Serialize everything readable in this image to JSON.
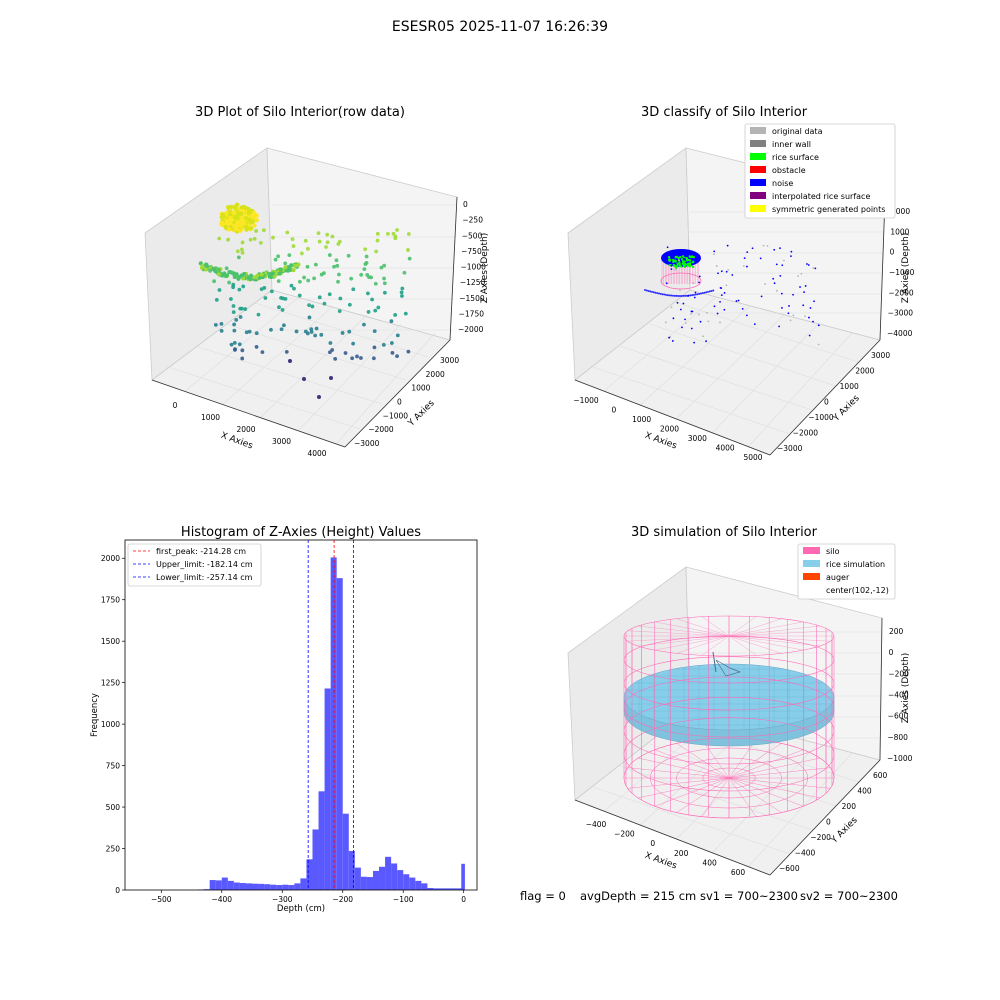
{
  "suptitle": "ESESR05 2025-11-07 16:26:39",
  "colors": {
    "silo": "#ff69b4",
    "rice": "#87ceeb",
    "auger": "#ff4500",
    "hist": "#5050ff",
    "peak_line": "#ff0000",
    "limit_line": "#0000ff"
  },
  "chart_data": [
    {
      "type": "scatter",
      "projection": "3d",
      "title": "3D Plot of Silo Interior(row data)",
      "xlabel": "X Axies",
      "ylabel": "Y Axies",
      "zlabel": "Z Axies (Depth)",
      "xticks": [
        "0",
        "1000",
        "2000",
        "3000",
        "4000"
      ],
      "yticks": [
        "3000",
        "2000",
        "1000",
        "0",
        "−1000",
        "−2000",
        "−3000"
      ],
      "zticks": [
        "0",
        "−250",
        "−500",
        "−750",
        "−1000",
        "−1250",
        "−1500",
        "−1750",
        "−2000"
      ],
      "xlim": [
        -800,
        4500
      ],
      "ylim": [
        -3400,
        3400
      ],
      "zlim": [
        -2100,
        100
      ],
      "colormap": "viridis"
    },
    {
      "type": "scatter",
      "projection": "3d",
      "title": "3D classify of Silo Interior",
      "xlabel": "X Axies",
      "ylabel": "Y Axies",
      "zlabel": "Z Axies (Depth)",
      "xticks": [
        "−1000",
        "0",
        "1000",
        "2000",
        "3000",
        "4000",
        "5000"
      ],
      "yticks": [
        "3000",
        "2000",
        "1000",
        "0",
        "−1000",
        "−2000",
        "−3000"
      ],
      "zticks": [
        "2000",
        "1000",
        "0",
        "−1000",
        "−2000",
        "−3000",
        "−4000"
      ],
      "xlim": [
        -1500,
        5200
      ],
      "ylim": [
        -3400,
        3400
      ],
      "zlim": [
        -4300,
        2300
      ],
      "legend_position": "top-right",
      "legend": [
        {
          "label": "original data",
          "color": "#b4b4b4"
        },
        {
          "label": "inner wall",
          "color": "#808080"
        },
        {
          "label": "rice surface",
          "color": "#00ff00"
        },
        {
          "label": "obstacle",
          "color": "#ff0000"
        },
        {
          "label": "noise",
          "color": "#0000ff"
        },
        {
          "label": "interpolated rice surface",
          "color": "#800080"
        },
        {
          "label": "symmetric generated points",
          "color": "#ffff00"
        }
      ]
    },
    {
      "type": "bar",
      "title": "Histogram of Z-Axies (Height) Values",
      "xlabel": "Depth (cm)",
      "ylabel": "Frequency",
      "xlim": [
        -560,
        22
      ],
      "ylim": [
        0,
        2110
      ],
      "xticks": [
        -500,
        -400,
        -300,
        -200,
        -100,
        0
      ],
      "yticks": [
        0,
        250,
        500,
        750,
        1000,
        1250,
        1500,
        1750,
        2000
      ],
      "bin_width": 10,
      "bins_start": [
        -540,
        -530,
        -520,
        -510,
        -500,
        -490,
        -480,
        -470,
        -460,
        -450,
        -440,
        -430,
        -420,
        -410,
        -400,
        -390,
        -380,
        -370,
        -360,
        -350,
        -340,
        -330,
        -320,
        -310,
        -300,
        -290,
        -280,
        -270,
        -260,
        -250,
        -240,
        -230,
        -220,
        -210,
        -200,
        -190,
        -180,
        -170,
        -160,
        -150,
        -140,
        -130,
        -120,
        -110,
        -100,
        -90,
        -80,
        -70,
        -60,
        -50,
        -40,
        -30,
        -20,
        -10,
        -4
      ],
      "frequency": [
        0,
        0,
        0,
        0,
        0,
        0,
        0,
        0,
        0,
        0,
        3,
        5,
        60,
        58,
        75,
        55,
        45,
        42,
        40,
        38,
        37,
        35,
        32,
        30,
        32,
        30,
        40,
        70,
        185,
        365,
        595,
        1215,
        2005,
        1880,
        460,
        235,
        135,
        80,
        78,
        115,
        140,
        200,
        160,
        120,
        95,
        75,
        55,
        40,
        12,
        10,
        10,
        10,
        10,
        10,
        158
      ],
      "legend_position": "top-left",
      "vlines": [
        {
          "label": "first_peak: -214.28 cm",
          "x": -214.28,
          "color": "#ff0000"
        },
        {
          "label": "Upper_limit: -182.14 cm",
          "x": -182.14,
          "color": "#0000ff"
        },
        {
          "label": "Lower_limit: -257.14 cm",
          "x": -257.14,
          "color": "#0000ff"
        }
      ]
    },
    {
      "type": "surface",
      "projection": "3d",
      "title": "3D simulation of Silo Interior",
      "xlabel": "X Axies",
      "ylabel": "Y Axies",
      "zlabel": "Z Axies (Depth)",
      "xticks": [
        "−400",
        "−200",
        "0",
        "200",
        "400",
        "600"
      ],
      "yticks": [
        "600",
        "400",
        "200",
        "0",
        "−200",
        "−400",
        "−600"
      ],
      "zticks": [
        "200",
        "0",
        "−200",
        "−400",
        "−600",
        "−800",
        "−1000"
      ],
      "xlim": [
        -500,
        700
      ],
      "ylim": [
        -700,
        700
      ],
      "zlim": [
        -1050,
        300
      ],
      "silo_center": [
        102,
        -12
      ],
      "legend_position": "top-right",
      "legend": [
        {
          "label": "silo",
          "color": "#ff69b4"
        },
        {
          "label": "rice simulation",
          "color": "#87ceeb"
        },
        {
          "label": "auger",
          "color": "#ff4500"
        },
        {
          "label": "center(102,-12)",
          "color": ""
        }
      ]
    }
  ],
  "footer": {
    "flag": "flag = 0",
    "avg": "avgDepth = 215 cm",
    "sv1": "sv1 = 700~2300",
    "sv2": "sv2 = 700~2300"
  }
}
